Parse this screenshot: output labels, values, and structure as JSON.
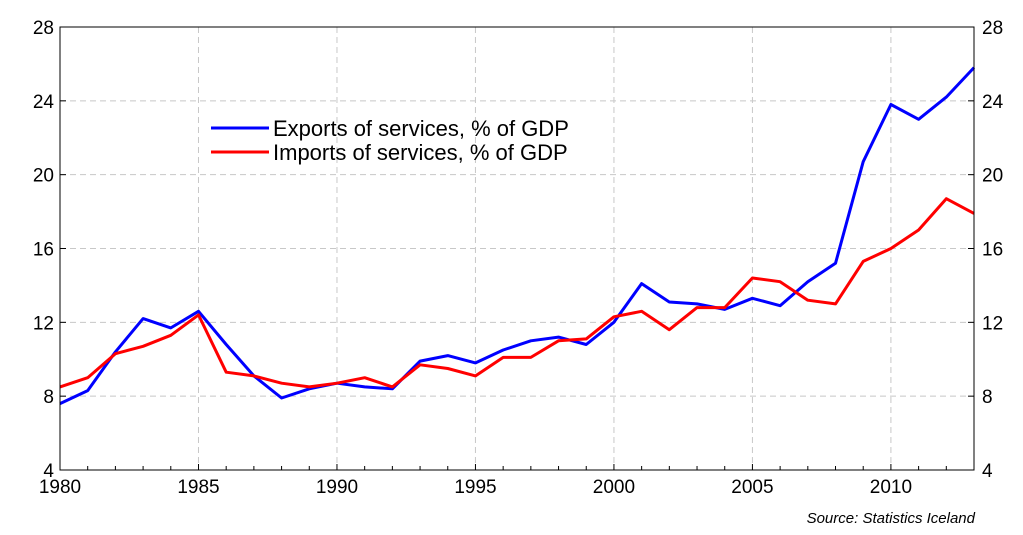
{
  "chart_data": {
    "type": "line",
    "x": [
      1980,
      1981,
      1982,
      1983,
      1984,
      1985,
      1986,
      1987,
      1988,
      1989,
      1990,
      1991,
      1992,
      1993,
      1994,
      1995,
      1996,
      1997,
      1998,
      1999,
      2000,
      2001,
      2002,
      2003,
      2004,
      2005,
      2006,
      2007,
      2008,
      2009,
      2010,
      2011,
      2012,
      2013
    ],
    "series": [
      {
        "name": "Exports of services, % of GDP",
        "color": "#0000ff",
        "values": [
          7.6,
          8.3,
          10.4,
          12.2,
          11.7,
          12.6,
          10.8,
          9.1,
          7.9,
          8.4,
          8.7,
          8.5,
          8.4,
          9.9,
          10.2,
          9.8,
          10.5,
          11.0,
          11.2,
          10.8,
          12.0,
          14.1,
          13.1,
          13.0,
          12.7,
          13.3,
          12.9,
          14.2,
          15.2,
          20.7,
          23.8,
          23.0,
          24.2,
          25.8
        ]
      },
      {
        "name": "Imports of services, % of GDP",
        "color": "#ff0000",
        "values": [
          8.5,
          9.0,
          10.3,
          10.7,
          11.3,
          12.4,
          9.3,
          9.1,
          8.7,
          8.5,
          8.7,
          9.0,
          8.5,
          9.7,
          9.5,
          9.1,
          10.1,
          10.1,
          11.0,
          11.1,
          12.3,
          12.6,
          11.6,
          12.8,
          12.8,
          14.4,
          14.2,
          13.2,
          13.0,
          15.3,
          16.0,
          17.0,
          18.7,
          17.9
        ]
      }
    ],
    "xticks": [
      "1980",
      "1985",
      "1990",
      "1995",
      "2000",
      "2005",
      "2010"
    ],
    "yticks": [
      "4",
      "8",
      "12",
      "16",
      "20",
      "24",
      "28"
    ],
    "xlim": [
      1980,
      2013
    ],
    "ylim": [
      4,
      28
    ],
    "grid": true,
    "legend_position": "upper-left-inside",
    "title": "",
    "xlabel": "",
    "ylabel": "",
    "source": "Source: Statistics Iceland"
  }
}
